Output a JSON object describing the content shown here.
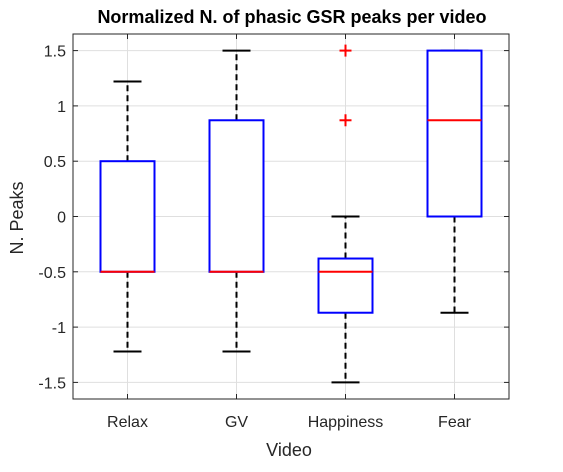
{
  "chart_data": {
    "type": "box",
    "title": "Normalized N. of phasic GSR peaks per video",
    "xlabel": "Video",
    "ylabel": "N. Peaks",
    "categories": [
      "Relax",
      "GV",
      "Happiness",
      "Fear"
    ],
    "ylim": [
      -1.65,
      1.65
    ],
    "yticks": [
      -1.5,
      -1,
      -0.5,
      0,
      0.5,
      1,
      1.5
    ],
    "ytick_labels": [
      "-1.5",
      "-1",
      "-0.5",
      "0",
      "0.5",
      "1",
      "1.5"
    ],
    "grid": true,
    "boxes": [
      {
        "category": "Relax",
        "whisker_low": -1.22,
        "q1": -0.5,
        "median": -0.5,
        "q3": 0.5,
        "whisker_high": 1.22,
        "outliers": []
      },
      {
        "category": "GV",
        "whisker_low": -1.22,
        "q1": -0.5,
        "median": -0.5,
        "q3": 0.87,
        "whisker_high": 1.5,
        "outliers": []
      },
      {
        "category": "Happiness",
        "whisker_low": -1.5,
        "q1": -0.87,
        "median": -0.5,
        "q3": -0.38,
        "whisker_high": 0.0,
        "outliers": [
          0.87,
          1.5
        ]
      },
      {
        "category": "Fear",
        "whisker_low": -0.87,
        "q1": 0.0,
        "median": 0.87,
        "q3": 1.5,
        "whisker_high": 1.5,
        "outliers": []
      }
    ],
    "colors": {
      "box": "#0000ff",
      "median": "#ff0000",
      "whisker": "#000000",
      "outlier": "#ff0000",
      "grid": "#dfdfdf",
      "axis": "#262626"
    }
  }
}
